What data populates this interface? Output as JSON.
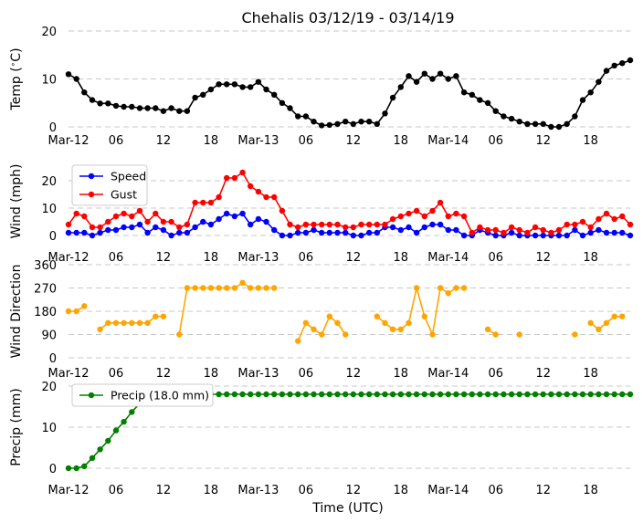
{
  "title": "Chehalis 03/12/19 - 03/14/19",
  "xlabel": "Time (UTC)",
  "x_ticks": [
    {
      "hour": 0,
      "label": "Mar-12"
    },
    {
      "hour": 6,
      "label": "06"
    },
    {
      "hour": 12,
      "label": "12"
    },
    {
      "hour": 18,
      "label": "18"
    },
    {
      "hour": 24,
      "label": "Mar-13"
    },
    {
      "hour": 30,
      "label": "06"
    },
    {
      "hour": 36,
      "label": "12"
    },
    {
      "hour": 42,
      "label": "18"
    },
    {
      "hour": 48,
      "label": "Mar-14"
    },
    {
      "hour": 54,
      "label": "06"
    },
    {
      "hour": 60,
      "label": "12"
    },
    {
      "hour": 66,
      "label": "18"
    }
  ],
  "colors": {
    "temp": "#000000",
    "speed": "#0000ff",
    "gust": "#ff0000",
    "direction": "#ffa500",
    "precip": "#008000",
    "grid": "#c8c8c8"
  },
  "chart_data": [
    {
      "type": "line",
      "ylabel": "Temp ($^\\circ$C)",
      "ylim": [
        0,
        20
      ],
      "yticks": [
        0,
        10,
        20
      ],
      "grid": true,
      "x_unit": "hours since Mar-12 00 UTC",
      "series": [
        {
          "color": "#000000",
          "marker": "circle",
          "line": true,
          "values": [
            11.0,
            10.0,
            7.2,
            5.6,
            4.9,
            4.9,
            4.4,
            4.2,
            4.2,
            3.9,
            3.9,
            3.9,
            3.3,
            3.9,
            3.3,
            3.3,
            6.1,
            6.7,
            7.8,
            8.9,
            8.9,
            8.9,
            8.3,
            8.3,
            9.4,
            7.8,
            6.7,
            5.0,
            3.9,
            2.2,
            2.2,
            1.1,
            0.3,
            0.4,
            0.6,
            1.1,
            0.6,
            1.1,
            1.1,
            0.6,
            2.8,
            6.1,
            8.3,
            10.6,
            9.4,
            11.1,
            10.0,
            11.1,
            10.0,
            10.6,
            7.2,
            6.7,
            5.6,
            5.0,
            3.3,
            2.2,
            1.7,
            1.1,
            0.6,
            0.6,
            0.6,
            0.0,
            0.0,
            0.6,
            2.2,
            5.6,
            7.2,
            9.4,
            11.7,
            12.8,
            13.3,
            13.9
          ]
        }
      ]
    },
    {
      "type": "line",
      "ylabel": "Wind (mph)",
      "ylim": [
        0,
        25
      ],
      "yticks": [
        0,
        10,
        20
      ],
      "grid": true,
      "legend": "top-left",
      "series": [
        {
          "name": "Speed",
          "color": "#0000ff",
          "marker": "circle",
          "line": true,
          "values": [
            1,
            1,
            1,
            0,
            1,
            2,
            2,
            3,
            3,
            4,
            1,
            3,
            2,
            0,
            1,
            1,
            3,
            5,
            4,
            6,
            8,
            7,
            8,
            4,
            6,
            5,
            2,
            0,
            0,
            1,
            1,
            2,
            1,
            1,
            1,
            1,
            0,
            0,
            1,
            1,
            3,
            3,
            2,
            3,
            1,
            3,
            4,
            4,
            2,
            2,
            0,
            0,
            2,
            1,
            0,
            0,
            1,
            0,
            0,
            0,
            0,
            0,
            0,
            0,
            2,
            0,
            1,
            2,
            1,
            1,
            1,
            0
          ]
        },
        {
          "name": "Gust",
          "color": "#ff0000",
          "marker": "circle",
          "line": true,
          "values": [
            4,
            8,
            7,
            3,
            3,
            5,
            7,
            8,
            7,
            9,
            5,
            8,
            5,
            5,
            3,
            4,
            12,
            12,
            12,
            14,
            21,
            21,
            23,
            18,
            16,
            14,
            14,
            9,
            4,
            3,
            4,
            4,
            4,
            4,
            4,
            3,
            3,
            4,
            4,
            4,
            4,
            6,
            7,
            8,
            9,
            7,
            9,
            12,
            7,
            8,
            7,
            1,
            3,
            2,
            2,
            1,
            3,
            2,
            1,
            3,
            2,
            1,
            2,
            4,
            4,
            5,
            3,
            6,
            8,
            6,
            7,
            4
          ]
        }
      ]
    },
    {
      "type": "scatter",
      "ylabel": "Wind Direction",
      "ylim": [
        0,
        360
      ],
      "yticks": [
        0,
        90,
        180,
        270,
        360
      ],
      "grid": true,
      "series": [
        {
          "color": "#ffa500",
          "marker": "circle",
          "line": "connect-consecutive",
          "values": [
            180,
            180,
            200,
            null,
            110,
            135,
            135,
            135,
            135,
            135,
            135,
            160,
            160,
            null,
            90,
            270,
            270,
            270,
            270,
            270,
            270,
            270,
            290,
            270,
            270,
            270,
            270,
            null,
            null,
            65,
            135,
            110,
            90,
            160,
            135,
            90,
            null,
            null,
            null,
            160,
            135,
            110,
            110,
            135,
            270,
            160,
            90,
            270,
            250,
            270,
            270,
            null,
            null,
            110,
            90,
            null,
            null,
            90,
            null,
            null,
            null,
            null,
            null,
            null,
            90,
            null,
            135,
            110,
            135,
            160,
            160,
            null
          ]
        }
      ]
    },
    {
      "type": "line",
      "ylabel": "Precip (mm)",
      "ylim": [
        0,
        20
      ],
      "yticks": [
        0,
        10,
        20
      ],
      "grid": true,
      "legend": "top-left",
      "series": [
        {
          "name": "Precip (18.0 mm)",
          "color": "#008000",
          "marker": "circle",
          "line": true,
          "values": [
            0,
            0,
            0.5,
            2.5,
            4.6,
            6.7,
            9.2,
            11.3,
            13.7,
            15.8,
            17.0,
            17.5,
            18.0,
            18.0,
            18.0,
            18.0,
            18.0,
            18.0,
            18.0,
            18.0,
            18.0,
            18.0,
            18.0,
            18.0,
            18.0,
            18.0,
            18.0,
            18.0,
            18.0,
            18.0,
            18.0,
            18.0,
            18.0,
            18.0,
            18.0,
            18.0,
            18.0,
            18.0,
            18.0,
            18.0,
            18.0,
            18.0,
            18.0,
            18.0,
            18.0,
            18.0,
            18.0,
            18.0,
            18.0,
            18.0,
            18.0,
            18.0,
            18.0,
            18.0,
            18.0,
            18.0,
            18.0,
            18.0,
            18.0,
            18.0,
            18.0,
            18.0,
            18.0,
            18.0,
            18.0,
            18.0,
            18.0,
            18.0,
            18.0,
            18.0,
            18.0,
            18.0
          ]
        }
      ]
    }
  ]
}
